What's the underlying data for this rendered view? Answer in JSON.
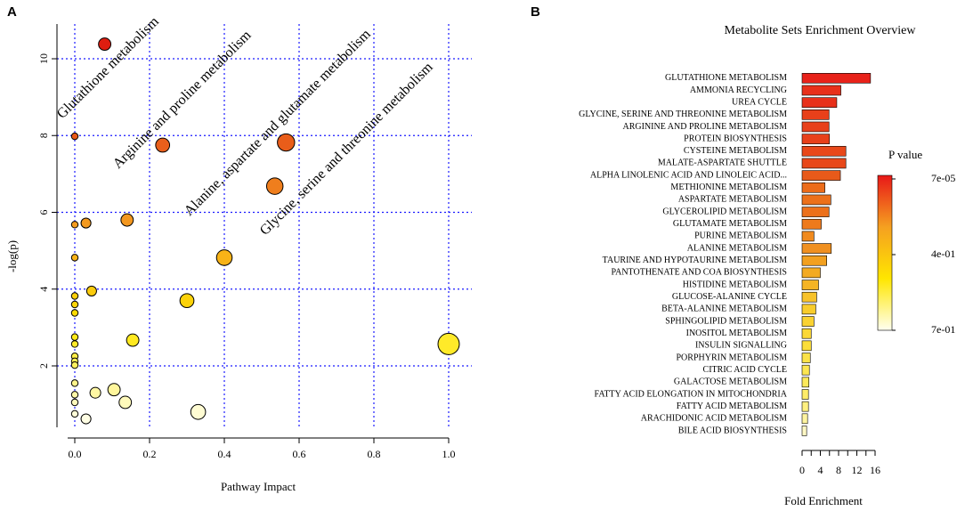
{
  "panels": {
    "a_letter": "A",
    "b_letter": "B"
  },
  "chart_data": [
    {
      "type": "scatter",
      "panel": "A",
      "title": "",
      "xlabel": "Pathway Impact",
      "ylabel": "-log(p)",
      "xlim": [
        -0.02,
        1.02
      ],
      "ylim": [
        0.2,
        11.0
      ],
      "xticks": [
        0.0,
        0.2,
        0.4,
        0.6,
        0.8,
        1.0
      ],
      "xtick_labels": [
        "0.0",
        "0.2",
        "0.4",
        "0.6",
        "0.8",
        "1.0"
      ],
      "yticks": [
        2,
        4,
        6,
        8,
        10
      ],
      "ytick_labels": [
        "2",
        "4",
        "6",
        "8",
        "10"
      ],
      "grid": true,
      "color_scale": [
        "#fffff0",
        "#ffe600",
        "#f5a020",
        "#e8581a",
        "#dd1a10"
      ],
      "points": [
        {
          "x": 0.08,
          "y": 10.38,
          "size": 0.45
        },
        {
          "x": 0.0,
          "y": 7.98,
          "size": 0.1
        },
        {
          "x": 0.235,
          "y": 7.75,
          "size": 0.55
        },
        {
          "x": 0.565,
          "y": 7.82,
          "size": 0.75
        },
        {
          "x": 0.535,
          "y": 6.68,
          "size": 0.7
        },
        {
          "x": 0.0,
          "y": 5.68,
          "size": 0.1
        },
        {
          "x": 0.03,
          "y": 5.72,
          "size": 0.3
        },
        {
          "x": 0.14,
          "y": 5.8,
          "size": 0.45
        },
        {
          "x": 0.0,
          "y": 4.82,
          "size": 0.1
        },
        {
          "x": 0.4,
          "y": 4.82,
          "size": 0.65
        },
        {
          "x": 0.045,
          "y": 3.95,
          "size": 0.3
        },
        {
          "x": 0.0,
          "y": 3.82,
          "size": 0.1
        },
        {
          "x": 0.0,
          "y": 3.6,
          "size": 0.1
        },
        {
          "x": 0.3,
          "y": 3.7,
          "size": 0.55
        },
        {
          "x": 0.0,
          "y": 3.38,
          "size": 0.1
        },
        {
          "x": 0.0,
          "y": 2.75,
          "size": 0.1
        },
        {
          "x": 0.155,
          "y": 2.67,
          "size": 0.45
        },
        {
          "x": 0.0,
          "y": 2.57,
          "size": 0.1
        },
        {
          "x": 1.0,
          "y": 2.57,
          "size": 1.0
        },
        {
          "x": 0.0,
          "y": 2.25,
          "size": 0.1
        },
        {
          "x": 0.0,
          "y": 2.12,
          "size": 0.1
        },
        {
          "x": 0.0,
          "y": 2.02,
          "size": 0.1
        },
        {
          "x": 0.0,
          "y": 1.55,
          "size": 0.1
        },
        {
          "x": 0.105,
          "y": 1.38,
          "size": 0.45
        },
        {
          "x": 0.055,
          "y": 1.3,
          "size": 0.35
        },
        {
          "x": 0.0,
          "y": 1.25,
          "size": 0.1
        },
        {
          "x": 0.135,
          "y": 1.05,
          "size": 0.45
        },
        {
          "x": 0.0,
          "y": 1.05,
          "size": 0.1
        },
        {
          "x": 0.33,
          "y": 0.8,
          "size": 0.6
        },
        {
          "x": 0.0,
          "y": 0.75,
          "size": 0.1
        },
        {
          "x": 0.03,
          "y": 0.62,
          "size": 0.3
        }
      ],
      "annotations": [
        {
          "text": "Glutathione metabolism"
        },
        {
          "text": "Arginine and proline metabolism"
        },
        {
          "text": "Alanine, aspartate and glutamate metabolism"
        },
        {
          "text": "Glycine, serine and threonine metabolism"
        }
      ]
    },
    {
      "type": "bar",
      "orientation": "horizontal",
      "panel": "B",
      "title": "Metabolite Sets Enrichment Overview",
      "xlabel": "Fold Enrichment",
      "ylabel": "",
      "xlim": [
        0,
        15.5
      ],
      "xticks": [
        0,
        4,
        8,
        12,
        16
      ],
      "xtick_labels": [
        "0",
        "4",
        "8",
        "12",
        "16"
      ],
      "categories": [
        "GLUTATHIONE METABOLISM",
        "AMMONIA RECYCLING",
        "UREA CYCLE",
        "GLYCINE, SERINE AND THREONINE METABOLISM",
        "ARGININE AND PROLINE METABOLISM",
        "PROTEIN BIOSYNTHESIS",
        "CYSTEINE METABOLISM",
        "MALATE-ASPARTATE SHUTTLE",
        "ALPHA LINOLENIC ACID AND LINOLEIC ACID...",
        "METHIONINE METABOLISM",
        "ASPARTATE METABOLISM",
        "GLYCEROLIPID METABOLISM",
        "GLUTAMATE METABOLISM",
        "PURINE METABOLISM",
        "ALANINE METABOLISM",
        "TAURINE AND HYPOTAURINE METABOLISM",
        "PANTOTHENATE AND COA BIOSYNTHESIS",
        "HISTIDINE METABOLISM",
        "GLUCOSE-ALANINE CYCLE",
        "BETA-ALANINE METABOLISM",
        "SPHINGOLIPID METABOLISM",
        "INOSITOL METABOLISM",
        "INSULIN SIGNALLING",
        "PORPHYRIN METABOLISM",
        "CITRIC ACID CYCLE",
        "GALACTOSE METABOLISM",
        "FATTY ACID ELONGATION IN MITOCHONDRIA",
        "FATTY ACID METABOLISM",
        "ARACHIDONIC ACID METABOLISM",
        "BILE ACID BIOSYNTHESIS"
      ],
      "values": [
        15.0,
        8.5,
        7.6,
        5.9,
        5.9,
        6.0,
        9.6,
        9.6,
        8.4,
        5.0,
        6.3,
        5.9,
        4.2,
        2.6,
        6.4,
        5.4,
        4.0,
        3.6,
        3.2,
        3.0,
        2.6,
        2.0,
        2.0,
        1.8,
        1.6,
        1.5,
        1.4,
        1.4,
        1.2,
        1.0
      ],
      "bar_colors": [
        "#e8221a",
        "#e8301a",
        "#e8301a",
        "#e8401a",
        "#e8401a",
        "#e8401a",
        "#e8481a",
        "#e8481a",
        "#e85a1a",
        "#ec6c1a",
        "#ec701a",
        "#ec701a",
        "#ee7a1c",
        "#f08a1e",
        "#f09020",
        "#f2a020",
        "#f3aa22",
        "#f5b424",
        "#f7c22a",
        "#f8cc2c",
        "#fad232",
        "#fbd836",
        "#fbde3a",
        "#fbe248",
        "#fce650",
        "#fde95a",
        "#feec68",
        "#fff080",
        "#fff4a0",
        "#fff8c4"
      ],
      "legend": {
        "title": "P value",
        "labels": [
          "7e-05",
          "4e-01",
          "7e-01"
        ],
        "colors": [
          "#e81818",
          "#f5a020",
          "#ffe600",
          "#fffff0"
        ]
      }
    }
  ]
}
